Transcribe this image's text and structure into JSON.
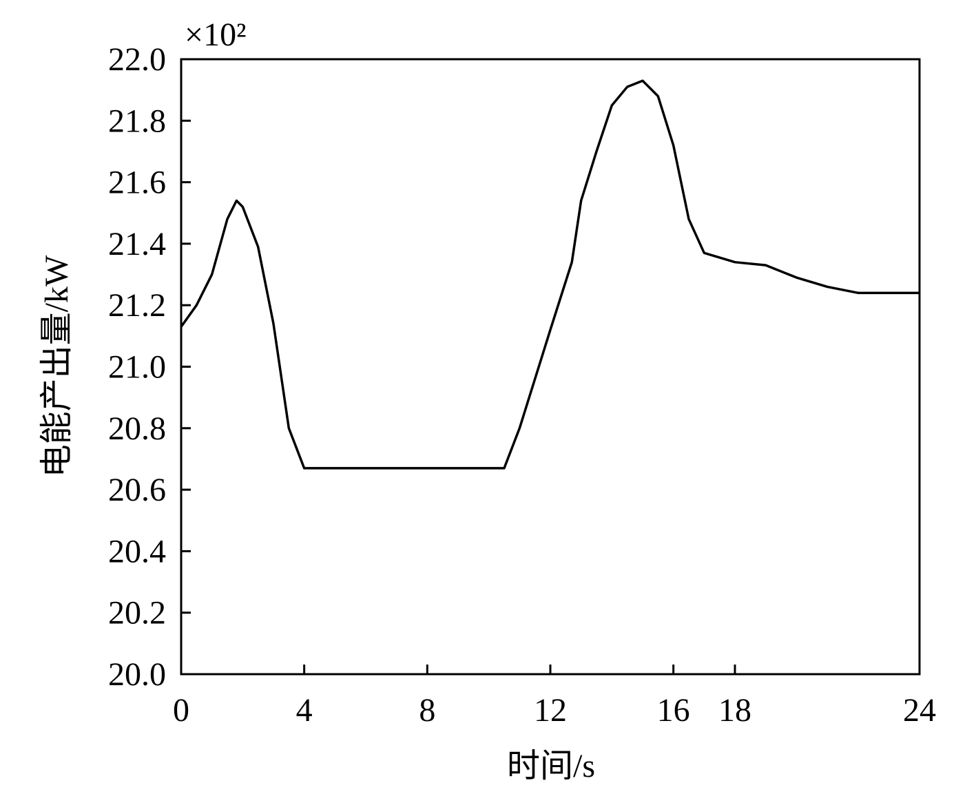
{
  "chart_data": {
    "type": "line",
    "multiplier": "×10²",
    "x_label": "时间/s",
    "y_label": "电能产出量/kW",
    "x": [
      0,
      0.5,
      1,
      1.5,
      1.8,
      2,
      2.5,
      3,
      3.5,
      4,
      8,
      10.5,
      11,
      12,
      12.7,
      13,
      13.5,
      14,
      14.5,
      15,
      15.5,
      16,
      16.5,
      17,
      18,
      19,
      20,
      21,
      22,
      24
    ],
    "series": [
      {
        "color": "#000000",
        "values": [
          21.13,
          21.2,
          21.3,
          21.48,
          21.54,
          21.52,
          21.39,
          21.14,
          20.8,
          20.67,
          20.67,
          20.67,
          20.8,
          21.12,
          21.34,
          21.54,
          21.7,
          21.85,
          21.91,
          21.93,
          21.88,
          21.72,
          21.48,
          21.37,
          21.34,
          21.33,
          21.29,
          21.26,
          21.24,
          21.24
        ]
      }
    ],
    "xlim": [
      0,
      24
    ],
    "xticks": [
      0,
      4,
      8,
      12,
      16,
      18,
      24
    ],
    "ylim": [
      20,
      22
    ],
    "yticks": [
      {
        "value": 20,
        "label": "20.0"
      },
      20.2,
      20.4,
      20.6,
      20.8,
      {
        "value": 21,
        "label": "21.0"
      },
      21.2,
      21.4,
      21.6,
      21.8,
      {
        "value": 22,
        "label": "22.0"
      }
    ]
  }
}
